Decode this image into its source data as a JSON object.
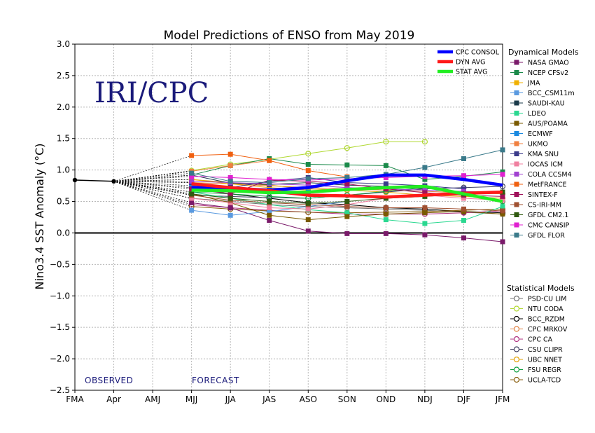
{
  "chart_data": {
    "type": "line",
    "title": "Model Predictions of ENSO from May 2019",
    "ylabel": "Nino3.4 SST Anomaly (°C)",
    "xlabel": "",
    "ylim": [
      -2.5,
      3.0
    ],
    "yticks": [
      "3.0",
      "2.5",
      "2.0",
      "1.5",
      "1.0",
      "0.5",
      "0.0",
      "−0.5",
      "−1.0",
      "−1.5",
      "−2.0",
      "−2.5"
    ],
    "ytick_values": [
      3.0,
      2.5,
      2.0,
      1.5,
      1.0,
      0.5,
      0.0,
      -0.5,
      -1.0,
      -1.5,
      -2.0,
      -2.5
    ],
    "categories": [
      "FMA",
      "Apr",
      "AMJ",
      "MJJ",
      "JJA",
      "JAS",
      "ASO",
      "SON",
      "OND",
      "NDJ",
      "DJF",
      "JFM"
    ],
    "grid": true,
    "logo_text": "IRI/CPC",
    "observed_label": "OBSERVED",
    "forecast_label": "FORECAST",
    "observed": {
      "x": [
        0,
        1
      ],
      "values": [
        0.84,
        0.82
      ],
      "color": "#000000"
    },
    "consensus": [
      {
        "name": "CPC CONSOL",
        "color": "#0000ff",
        "values": [
          0.72,
          0.71,
          0.68,
          0.72,
          0.83,
          0.92,
          0.92,
          0.85,
          0.76
        ]
      },
      {
        "name": "DYN AVG",
        "color": "#ff1a1a",
        "values": [
          0.78,
          0.72,
          0.67,
          0.6,
          0.59,
          0.57,
          0.6,
          0.63,
          0.65
        ]
      },
      {
        "name": "STAT AVG",
        "color": "#22ee22",
        "values": [
          0.68,
          0.67,
          0.64,
          0.65,
          0.69,
          0.72,
          0.74,
          0.62,
          0.5
        ]
      }
    ],
    "legend_dynamical_title": "Dynamical Models",
    "legend_statistical_title": "Statistical Models",
    "dynamical": [
      {
        "name": "NASA GMAO",
        "color": "#7a1a6a",
        "values": [
          0.48,
          0.4,
          0.2,
          0.03,
          -0.01,
          -0.01,
          -0.03,
          -0.08,
          -0.14
        ]
      },
      {
        "name": "NCEP CFSv2",
        "color": "#1a8a4a",
        "values": [
          0.92,
          1.07,
          1.18,
          1.09,
          1.08,
          1.07,
          0.85,
          0.9,
          0.97
        ]
      },
      {
        "name": "JMA",
        "color": "#f0b000",
        "values": [
          0.85,
          0.78,
          0.72,
          0.68,
          null,
          null,
          null,
          null,
          null
        ]
      },
      {
        "name": "BCC_CSM11m",
        "color": "#5a9ae0",
        "values": [
          0.36,
          0.28,
          0.34,
          0.42,
          0.5,
          null,
          null,
          null,
          null
        ]
      },
      {
        "name": "SAUDI-KAU",
        "color": "#1a3a4a",
        "values": [
          0.92,
          0.79,
          0.77,
          0.8,
          0.76,
          0.74,
          0.7,
          null,
          null
        ]
      },
      {
        "name": "LDEO",
        "color": "#2ad890",
        "values": [
          0.65,
          0.55,
          0.45,
          0.37,
          0.32,
          0.21,
          0.15,
          0.2,
          0.42
        ]
      },
      {
        "name": "AUS/POAMA",
        "color": "#7a5a00",
        "values": [
          0.62,
          0.48,
          0.28,
          0.21,
          0.26,
          0.3,
          0.32,
          0.34,
          0.3
        ]
      },
      {
        "name": "ECMWF",
        "color": "#1a8ae0",
        "values": [
          0.75,
          0.7,
          0.68,
          0.65,
          null,
          null,
          null,
          null,
          null
        ]
      },
      {
        "name": "UKMO",
        "color": "#f08040",
        "values": [
          0.98,
          1.07,
          1.15,
          null,
          null,
          null,
          null,
          null,
          null
        ]
      },
      {
        "name": "KMA SNU",
        "color": "#3a3a8a",
        "values": [
          0.8,
          0.72,
          0.82,
          0.88,
          0.8,
          0.78,
          0.75,
          0.7,
          null
        ]
      },
      {
        "name": "IOCAS ICM",
        "color": "#f080a0",
        "values": [
          0.55,
          0.48,
          0.4,
          0.38,
          0.45,
          0.55,
          0.6,
          0.55,
          0.52
        ]
      },
      {
        "name": "COLA CCSM4",
        "color": "#a040d0",
        "values": [
          0.82,
          0.8,
          0.78,
          0.76,
          0.72,
          0.7,
          0.68,
          0.66,
          0.64
        ]
      },
      {
        "name": "MetFRANCE",
        "color": "#f06010",
        "values": [
          1.23,
          1.25,
          1.15,
          0.99,
          0.89,
          null,
          null,
          null,
          null
        ]
      },
      {
        "name": "SINTEX-F",
        "color": "#a0105a",
        "values": [
          0.7,
          0.62,
          0.84,
          0.82,
          0.78,
          0.7,
          0.64,
          0.6,
          0.58
        ]
      },
      {
        "name": "CS-IRI-MM",
        "color": "#a05030",
        "values": [
          0.6,
          0.52,
          0.48,
          0.45,
          0.42,
          0.4,
          0.4,
          0.38,
          0.35
        ]
      },
      {
        "name": "GFDL CM2.1",
        "color": "#305a10",
        "values": [
          0.62,
          0.55,
          0.5,
          0.47,
          0.5,
          0.55,
          0.58,
          0.62,
          0.65
        ]
      },
      {
        "name": "CMC CANSIP",
        "color": "#e020d0",
        "values": [
          0.9,
          0.88,
          0.85,
          0.84,
          0.86,
          0.88,
          0.9,
          0.91,
          0.93
        ]
      },
      {
        "name": "GFDL FLOR",
        "color": "#3a7a8a",
        "values": [
          0.95,
          0.82,
          0.8,
          0.86,
          0.88,
          0.93,
          1.04,
          1.18,
          1.32
        ]
      }
    ],
    "statistical": [
      {
        "name": "PSD-CU LIM",
        "color": "#707070",
        "values": [
          0.55,
          0.5,
          0.45,
          0.42,
          0.4,
          0.38,
          0.36,
          0.33,
          0.3
        ]
      },
      {
        "name": "NTU CODA",
        "color": "#b0d830",
        "values": [
          0.99,
          1.09,
          1.17,
          1.26,
          1.35,
          1.45,
          1.45,
          null,
          null
        ]
      },
      {
        "name": "BCC_RZDM",
        "color": "#000000",
        "values": [
          0.72,
          0.62,
          0.55,
          0.48,
          0.45,
          0.4,
          0.38,
          0.34,
          0.32
        ]
      },
      {
        "name": "CPC MRKOV",
        "color": "#e08040",
        "values": [
          0.8,
          0.78,
          0.75,
          0.72,
          0.7,
          0.68,
          0.66,
          0.64,
          0.62
        ]
      },
      {
        "name": "CPC CA",
        "color": "#b03080",
        "values": [
          0.45,
          0.4,
          0.36,
          0.33,
          0.3,
          0.3,
          0.3,
          0.32,
          0.35
        ]
      },
      {
        "name": "CSU CLIPR",
        "color": "#404060",
        "values": [
          0.6,
          0.58,
          0.56,
          0.55,
          0.6,
          0.65,
          0.7,
          0.72,
          0.74
        ]
      },
      {
        "name": "UBC NNET",
        "color": "#e0a000",
        "values": [
          0.85,
          0.8,
          0.76,
          0.7,
          0.68,
          0.65,
          0.6,
          0.58,
          0.55
        ]
      },
      {
        "name": "FSU REGR",
        "color": "#10a040",
        "values": [
          0.65,
          0.62,
          0.58,
          0.55,
          0.6,
          0.66,
          0.72,
          0.62,
          0.5
        ]
      },
      {
        "name": "UCLA-TCD",
        "color": "#8a6010",
        "values": [
          0.42,
          0.38,
          0.35,
          0.33,
          0.32,
          0.33,
          0.34,
          0.36,
          0.38
        ]
      }
    ]
  }
}
